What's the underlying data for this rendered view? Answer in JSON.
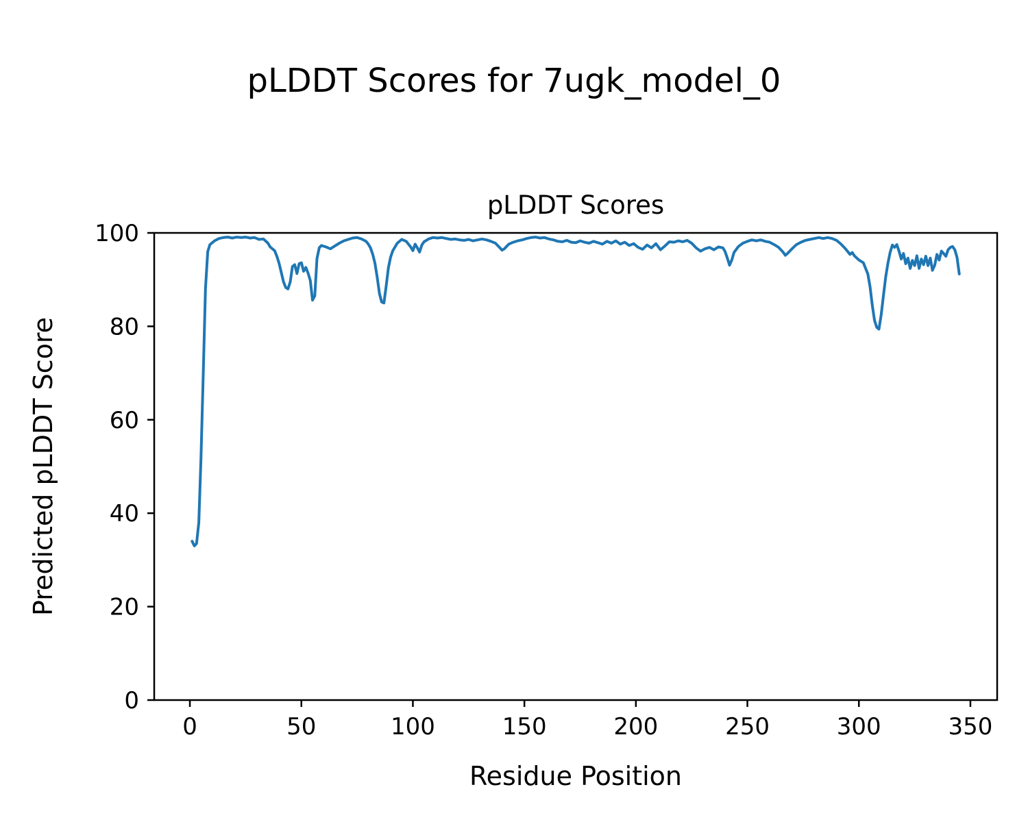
{
  "chart_data": {
    "type": "line",
    "suptitle": "pLDDT Scores for 7ugk_model_0",
    "title": "pLDDT Scores",
    "xlabel": "Residue Position",
    "ylabel": "Predicted pLDDT Score",
    "xlim": [
      -16,
      362
    ],
    "ylim": [
      0,
      100
    ],
    "xticks": [
      0,
      50,
      100,
      150,
      200,
      250,
      300,
      350
    ],
    "yticks": [
      0,
      20,
      40,
      60,
      80,
      100
    ],
    "grid": false,
    "legend": "none",
    "line_color": "#1f77b4",
    "series": [
      {
        "name": "pLDDT",
        "x": [
          1,
          2,
          3,
          4,
          5,
          6,
          7,
          8,
          9,
          11,
          13,
          15,
          17,
          19,
          21,
          23,
          25,
          27,
          29,
          31,
          33,
          35,
          36,
          38,
          39,
          40,
          41,
          42,
          43,
          44,
          45,
          46,
          47,
          48,
          49,
          50,
          51,
          52,
          53,
          54,
          55,
          56,
          57,
          58,
          59,
          61,
          63,
          65,
          67,
          69,
          71,
          73,
          75,
          77,
          79,
          80,
          81,
          82,
          83,
          84,
          85,
          86,
          87,
          88,
          89,
          90,
          91,
          93,
          95,
          97,
          99,
          100,
          101,
          102,
          103,
          104,
          105,
          107,
          109,
          111,
          113,
          115,
          117,
          119,
          121,
          123,
          125,
          127,
          129,
          131,
          133,
          135,
          137,
          139,
          140,
          141,
          143,
          145,
          147,
          149,
          151,
          153,
          155,
          157,
          159,
          161,
          163,
          165,
          167,
          169,
          171,
          173,
          175,
          177,
          179,
          181,
          183,
          185,
          187,
          189,
          191,
          193,
          195,
          197,
          199,
          201,
          203,
          205,
          207,
          209,
          211,
          213,
          215,
          217,
          219,
          221,
          223,
          225,
          227,
          229,
          231,
          233,
          235,
          237,
          239,
          240,
          241,
          242,
          243,
          244,
          246,
          248,
          250,
          252,
          254,
          256,
          258,
          260,
          262,
          264,
          266,
          267,
          268,
          270,
          272,
          274,
          276,
          278,
          280,
          282,
          284,
          286,
          288,
          290,
          292,
          294,
          295,
          296,
          297,
          298,
          300,
          302,
          304,
          305,
          306,
          307,
          308,
          309,
          310,
          311,
          312,
          313,
          314,
          315,
          316,
          317,
          318,
          319,
          320,
          321,
          322,
          323,
          324,
          325,
          326,
          327,
          328,
          329,
          330,
          331,
          332,
          333,
          334,
          335,
          336,
          337,
          338,
          339,
          340,
          341,
          342,
          343,
          344,
          345
        ],
        "y": [
          34,
          33,
          33.5,
          38,
          52,
          70,
          88,
          96,
          97.5,
          98.3,
          98.8,
          99,
          99.1,
          98.9,
          99.1,
          99,
          99.1,
          98.9,
          99,
          98.6,
          98.7,
          97.8,
          97,
          96.2,
          95,
          93.5,
          91.5,
          89.5,
          88.3,
          88,
          89.5,
          92.8,
          93.2,
          91.3,
          93.4,
          93.6,
          91.8,
          92.6,
          91.4,
          89.8,
          85.6,
          86.5,
          94.5,
          96.8,
          97.3,
          97,
          96.6,
          97.2,
          97.8,
          98.3,
          98.6,
          98.9,
          99,
          98.7,
          98.2,
          97.6,
          96.8,
          95.4,
          93.5,
          90.5,
          87,
          85.2,
          85,
          88.5,
          92.5,
          94.8,
          96.2,
          97.8,
          98.6,
          98.2,
          97,
          96.2,
          97.6,
          96.8,
          95.9,
          97.4,
          98.1,
          98.7,
          99,
          98.9,
          99,
          98.8,
          98.6,
          98.7,
          98.5,
          98.4,
          98.6,
          98.3,
          98.5,
          98.7,
          98.5,
          98.2,
          97.8,
          96.8,
          96.3,
          96.6,
          97.6,
          98,
          98.3,
          98.5,
          98.8,
          99,
          99.1,
          98.9,
          99,
          98.7,
          98.5,
          98.2,
          98.1,
          98.4,
          98,
          97.9,
          98.3,
          98,
          97.8,
          98.2,
          97.9,
          97.6,
          98.2,
          97.8,
          98.3,
          97.6,
          98,
          97.3,
          97.7,
          96.9,
          96.5,
          97.4,
          96.8,
          97.7,
          96.4,
          97.2,
          98.1,
          98,
          98.3,
          98.1,
          98.4,
          97.8,
          96.8,
          96.1,
          96.6,
          96.9,
          96.4,
          97,
          96.8,
          96,
          94.6,
          93.1,
          94.2,
          95.8,
          97.1,
          97.8,
          98.2,
          98.5,
          98.3,
          98.5,
          98.2,
          98,
          97.5,
          96.9,
          95.9,
          95.2,
          95.6,
          96.6,
          97.5,
          98,
          98.4,
          98.6,
          98.8,
          99,
          98.8,
          99,
          98.8,
          98.4,
          97.6,
          96.6,
          96,
          95.4,
          95.8,
          95.1,
          94.2,
          93.6,
          91.2,
          88.5,
          84.5,
          81.3,
          79.8,
          79.4,
          82.5,
          86.5,
          90.5,
          93.5,
          95.8,
          97.4,
          96.9,
          97.5,
          96.1,
          94.4,
          95.6,
          93.4,
          94.6,
          92.4,
          94.1,
          93,
          95.1,
          92.4,
          94.4,
          93.2,
          95,
          93,
          94.6,
          92,
          93.1,
          95.4,
          94.2,
          96.1,
          95.6,
          95,
          96.4,
          96.9,
          97.1,
          96.4,
          94.8,
          91.2
        ]
      }
    ]
  }
}
